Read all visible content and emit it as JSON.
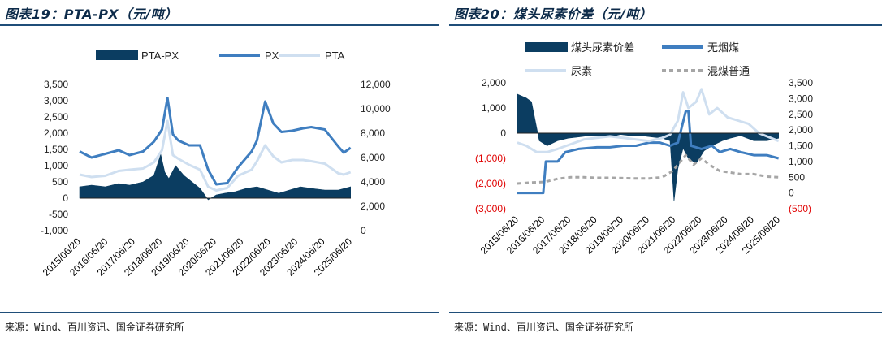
{
  "panels": {
    "left": {
      "title": "图表19：PTA-PX（元/吨）",
      "source": "来源：Wind、百川资讯、国金证券研究所"
    },
    "right": {
      "title": "图表20：煤头尿素价差（元/吨）",
      "source": "来源：Wind、百川资讯、国金证券研究所"
    }
  },
  "colors": {
    "navy": "#0b3d61",
    "blue": "#3f7ec0",
    "lightblue": "#cfdff0",
    "gray": "#a6a6a6",
    "red": "#e00000",
    "rule": "#1f4e79"
  },
  "chart_data": [
    {
      "type": "line",
      "legend_position": "top",
      "grid": false,
      "x_labels": [
        "2015/06/20",
        "2016/06/20",
        "2017/06/20",
        "2018/06/20",
        "2019/06/20",
        "2020/06/20",
        "2021/06/20",
        "2022/06/20",
        "2023/06/20",
        "2024/06/20",
        "2025/06/20"
      ],
      "y_left": {
        "min": -1000,
        "max": 3500,
        "ticks": [
          -1000,
          -500,
          0,
          500,
          1000,
          1500,
          2000,
          2500,
          3000,
          3500
        ],
        "tick_labels": [
          "-1,000",
          "-500",
          "0",
          "500",
          "1,000",
          "1,500",
          "2,000",
          "2,500",
          "3,000",
          "3,500"
        ]
      },
      "y_right": {
        "min": 0,
        "max": 12000,
        "ticks": [
          0,
          2000,
          4000,
          6000,
          8000,
          10000,
          12000
        ],
        "tick_labels": [
          "0",
          "2,000",
          "4,000",
          "6,000",
          "8,000",
          "10,000",
          "12,000"
        ]
      },
      "series": [
        {
          "name": "PTA-PX",
          "kind": "area",
          "axis": "left",
          "x": [
            2015.46,
            2015.9,
            2016.4,
            2016.9,
            2017.3,
            2017.8,
            2018.2,
            2018.45,
            2018.6,
            2018.75,
            2019.0,
            2019.3,
            2019.6,
            2019.9,
            2020.2,
            2020.5,
            2020.8,
            2021.2,
            2021.6,
            2022.0,
            2022.4,
            2022.8,
            2023.2,
            2023.6,
            2024.0,
            2024.5,
            2025.0,
            2025.45
          ],
          "values": [
            350,
            400,
            350,
            450,
            400,
            500,
            700,
            1350,
            800,
            600,
            1000,
            700,
            500,
            300,
            -50,
            100,
            150,
            200,
            300,
            350,
            250,
            150,
            250,
            350,
            300,
            250,
            250,
            350
          ]
        },
        {
          "name": "PX",
          "kind": "line",
          "axis": "right",
          "x": [
            2015.46,
            2015.9,
            2016.4,
            2016.9,
            2017.3,
            2017.8,
            2018.2,
            2018.5,
            2018.7,
            2018.9,
            2019.1,
            2019.5,
            2019.9,
            2020.2,
            2020.5,
            2020.9,
            2021.3,
            2021.8,
            2022.0,
            2022.3,
            2022.6,
            2022.9,
            2023.3,
            2023.7,
            2024.0,
            2024.5,
            2025.0,
            2025.2,
            2025.45
          ],
          "values": [
            6500,
            6000,
            6300,
            6600,
            6200,
            6500,
            7300,
            8300,
            10900,
            7900,
            7400,
            7000,
            7000,
            5000,
            3800,
            3900,
            5200,
            6500,
            7400,
            10600,
            8800,
            8100,
            8200,
            8400,
            8500,
            8300,
            6900,
            6400,
            6800
          ]
        },
        {
          "name": "PTA",
          "kind": "line",
          "axis": "right",
          "x": [
            2015.46,
            2015.9,
            2016.4,
            2016.9,
            2017.3,
            2017.8,
            2018.2,
            2018.5,
            2018.7,
            2018.9,
            2019.1,
            2019.5,
            2019.9,
            2020.2,
            2020.5,
            2020.9,
            2021.3,
            2021.8,
            2022.0,
            2022.3,
            2022.6,
            2022.9,
            2023.3,
            2023.7,
            2024.0,
            2024.5,
            2025.0,
            2025.2,
            2025.45
          ],
          "values": [
            4600,
            4400,
            4500,
            4900,
            5000,
            5100,
            5600,
            6600,
            9000,
            6200,
            5900,
            5400,
            5000,
            3600,
            3300,
            3500,
            4500,
            5000,
            5700,
            7000,
            6100,
            5600,
            5800,
            5800,
            5700,
            5500,
            4700,
            4600,
            4800
          ]
        }
      ]
    },
    {
      "type": "line",
      "legend_position": "top",
      "grid": false,
      "x_labels": [
        "2015/06/20",
        "2016/06/20",
        "2017/06/20",
        "2018/06/20",
        "2019/06/20",
        "2020/06/20",
        "2021/06/20",
        "2022/06/20",
        "2023/06/20",
        "2024/06/20",
        "2025/06/20"
      ],
      "y_left": {
        "min": -3000,
        "max": 2000,
        "ticks": [
          -3000,
          -2000,
          -1000,
          0,
          1000,
          2000
        ],
        "tick_labels": [
          "(3,000)",
          "(2,000)",
          "(1,000)",
          "0",
          "1,000",
          "2,000"
        ]
      },
      "y_right": {
        "min": -500,
        "max": 3500,
        "ticks": [
          -500,
          0,
          500,
          1000,
          1500,
          2000,
          2500,
          3000,
          3500
        ],
        "tick_labels": [
          "(500)",
          "0",
          "500",
          "1,000",
          "1,500",
          "2,000",
          "2,500",
          "3,000",
          "3,500"
        ]
      },
      "series": [
        {
          "name": "煤头尿素价差",
          "kind": "area",
          "axis": "left",
          "x": [
            2015.46,
            2015.8,
            2016.0,
            2016.3,
            2016.6,
            2017.0,
            2017.4,
            2017.8,
            2018.2,
            2018.6,
            2019.0,
            2019.4,
            2019.8,
            2020.2,
            2020.6,
            2021.0,
            2021.3,
            2021.45,
            2021.6,
            2021.8,
            2022.0,
            2022.3,
            2022.6,
            2022.9,
            2023.3,
            2023.6,
            2024.0,
            2024.5,
            2025.0,
            2025.45
          ],
          "values": [
            1550,
            1400,
            1250,
            -300,
            -500,
            -300,
            -200,
            -150,
            -100,
            -100,
            -150,
            -50,
            -100,
            -100,
            -150,
            -200,
            -300,
            -2700,
            -1400,
            -600,
            -1000,
            -1200,
            -700,
            -500,
            -300,
            -200,
            -100,
            -300,
            -300,
            -200
          ]
        },
        {
          "name": "无烟煤",
          "kind": "line",
          "axis": "right",
          "x": [
            2015.46,
            2016.2,
            2016.45,
            2016.55,
            2017.0,
            2017.3,
            2017.8,
            2018.5,
            2019.0,
            2019.5,
            2020.0,
            2020.5,
            2020.9,
            2021.3,
            2021.6,
            2021.9,
            2022.0,
            2022.1,
            2022.5,
            2022.9,
            2023.2,
            2023.6,
            2024.0,
            2024.5,
            2025.0,
            2025.45
          ],
          "values": [
            0,
            0,
            0,
            1000,
            1000,
            1300,
            1400,
            1450,
            1450,
            1500,
            1500,
            1600,
            1600,
            1500,
            1600,
            2600,
            2600,
            1500,
            1400,
            1500,
            1300,
            1400,
            1300,
            1200,
            1200,
            1100
          ]
        },
        {
          "name": "尿素",
          "kind": "line",
          "axis": "right",
          "x": [
            2015.46,
            2015.8,
            2016.2,
            2016.6,
            2017.0,
            2017.5,
            2018.0,
            2018.5,
            2019.0,
            2019.5,
            2020.0,
            2020.5,
            2021.0,
            2021.3,
            2021.6,
            2021.8,
            2022.0,
            2022.3,
            2022.5,
            2022.8,
            2023.1,
            2023.5,
            2023.9,
            2024.3,
            2024.7,
            2025.0,
            2025.45
          ],
          "values": [
            1600,
            1500,
            1300,
            1300,
            1400,
            1550,
            1700,
            1750,
            1800,
            1750,
            1700,
            1650,
            1750,
            1850,
            2300,
            3200,
            2700,
            2900,
            3300,
            2500,
            2700,
            2400,
            2300,
            2200,
            1900,
            1800,
            1650
          ]
        },
        {
          "name": "混煤普通",
          "kind": "dashed",
          "axis": "right",
          "x": [
            2015.46,
            2016.0,
            2016.5,
            2017.0,
            2017.5,
            2018.0,
            2018.5,
            2019.0,
            2019.5,
            2020.0,
            2020.5,
            2021.0,
            2021.4,
            2021.7,
            2021.9,
            2022.2,
            2022.5,
            2022.8,
            2023.2,
            2023.6,
            2024.0,
            2024.5,
            2025.0,
            2025.45
          ],
          "values": [
            300,
            330,
            350,
            450,
            500,
            500,
            480,
            480,
            470,
            460,
            460,
            500,
            700,
            1000,
            1200,
            900,
            1100,
            900,
            700,
            650,
            600,
            600,
            520,
            500
          ]
        }
      ]
    }
  ]
}
